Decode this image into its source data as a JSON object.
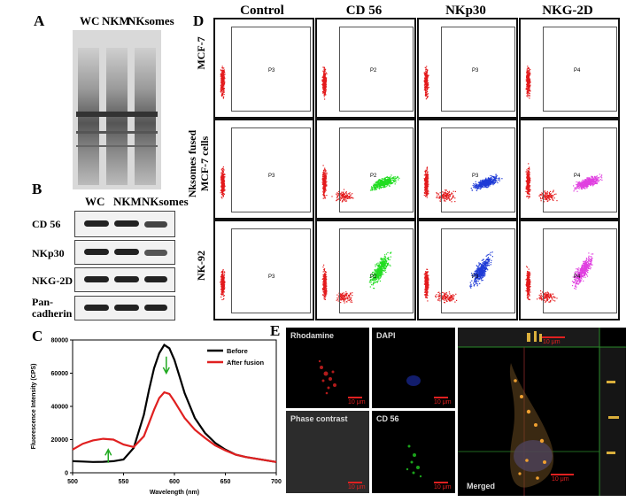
{
  "panel_a": {
    "letter": "A",
    "lanes": [
      "WC",
      "NKM",
      "NKsomes"
    ]
  },
  "panel_b": {
    "letter": "B",
    "lanes": [
      "WC",
      "NKM",
      "NKsomes"
    ],
    "rows": [
      "CD 56",
      "NKp30",
      "NKG-2D",
      "Pan-\ncadherin"
    ]
  },
  "panel_c": {
    "letter": "C"
  },
  "panel_d": {
    "letter": "D",
    "columns": [
      "Control",
      "CD 56",
      "NKp30",
      "NKG-2D"
    ],
    "rows": [
      "MCF-7",
      "Nksomes fused\nMCF-7 cells",
      "NK-92"
    ],
    "gates": [
      [
        "P3",
        "P2",
        "P3",
        "P4"
      ],
      [
        "P3",
        "P2",
        "P3",
        "P4"
      ],
      [
        "P3",
        "P2",
        "P3",
        "P4"
      ]
    ],
    "colors": {
      "red": "#e31a1c",
      "green": "#22dd22",
      "blue": "#1f3bd6",
      "magenta": "#e040e0"
    }
  },
  "panel_e": {
    "letter": "E",
    "tiles": [
      "Rhodamine",
      "DAPI",
      "Phase contrast",
      "CD 56"
    ],
    "merged_label": "Merged",
    "scale": "10 μm"
  },
  "chart_data": {
    "type": "line",
    "xlabel": "Wavelength (nm)",
    "ylabel": "Fluorescence Intensity (CPS)",
    "xlim": [
      500,
      700
    ],
    "ylim": [
      0,
      80000
    ],
    "xticks": [
      500,
      550,
      600,
      650,
      700
    ],
    "yticks": [
      0,
      20000,
      40000,
      60000,
      80000
    ],
    "legend_position": "top-right",
    "series": [
      {
        "name": "Before",
        "color": "#000000",
        "x": [
          500,
          510,
          520,
          530,
          540,
          550,
          560,
          570,
          575,
          580,
          585,
          590,
          595,
          600,
          605,
          610,
          620,
          630,
          640,
          650,
          660,
          670,
          680,
          690,
          700
        ],
        "y": [
          7000,
          6800,
          6500,
          6600,
          7000,
          8000,
          15000,
          35000,
          50000,
          63000,
          72000,
          77000,
          75000,
          68000,
          58000,
          48000,
          33000,
          24000,
          18000,
          14000,
          11000,
          9500,
          8500,
          7500,
          6500
        ]
      },
      {
        "name": "After fusion",
        "color": "#e02020",
        "x": [
          500,
          510,
          520,
          530,
          540,
          550,
          560,
          570,
          575,
          580,
          585,
          590,
          595,
          600,
          605,
          610,
          620,
          630,
          640,
          650,
          660,
          670,
          680,
          690,
          700
        ],
        "y": [
          14000,
          17500,
          19500,
          20500,
          20000,
          17000,
          15500,
          22000,
          30000,
          38000,
          45000,
          48500,
          47500,
          43000,
          38000,
          33000,
          26000,
          21000,
          16500,
          13500,
          11000,
          9500,
          8500,
          7500,
          6500
        ]
      }
    ]
  }
}
